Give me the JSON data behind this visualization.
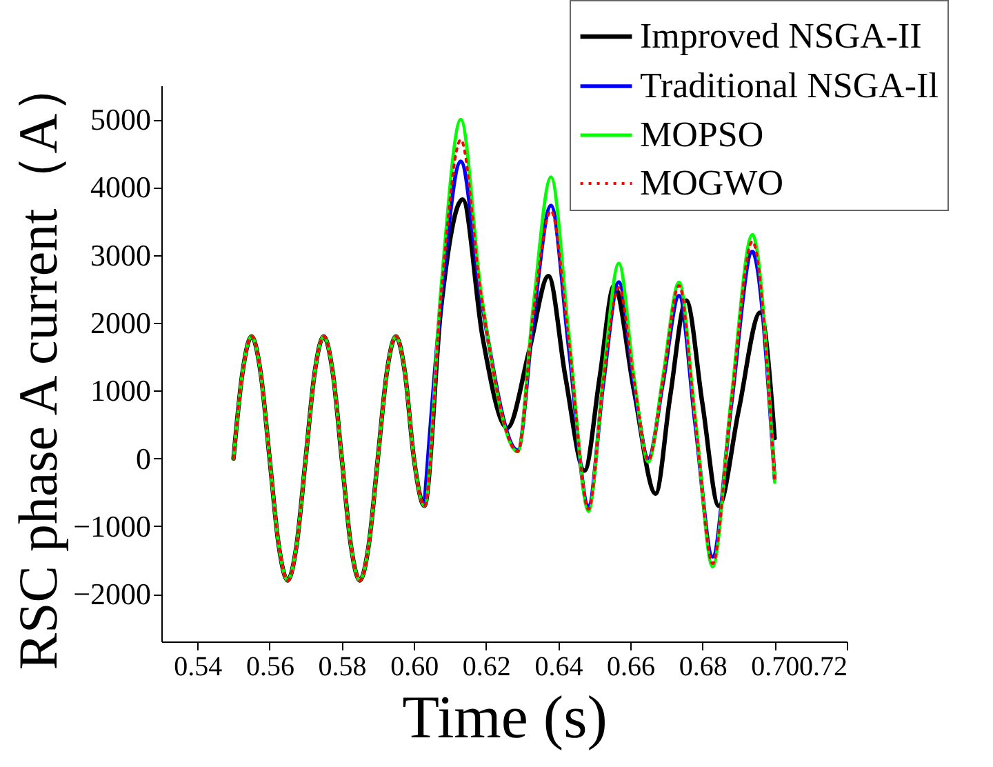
{
  "chart_data": {
    "type": "line",
    "xlabel": "Time (s)",
    "ylabel": "RSC phase A current（A）",
    "xlim": [
      0.53,
      0.72
    ],
    "xticks": [
      0.54,
      0.56,
      0.58,
      {
        "value": 0.6,
        "label": "0.60"
      },
      0.62,
      0.64,
      0.66,
      0.68,
      {
        "value": 0.7,
        "label": "0.70"
      },
      0.72
    ],
    "ylim": [
      -2700,
      5500
    ],
    "yticks": [
      -2000,
      -1000,
      0,
      1000,
      2000,
      3000,
      4000,
      5000
    ],
    "grid": false,
    "legend": "top right",
    "series": [
      {
        "name": "Improved NSGA-II",
        "color": "#000000",
        "line_style": "solid",
        "x": [
          0.55,
          0.5525,
          0.555,
          0.5575,
          0.56,
          0.5625,
          0.565,
          0.5675,
          0.57,
          0.5725,
          0.575,
          0.5775,
          0.58,
          0.5825,
          0.585,
          0.5875,
          0.59,
          0.5925,
          0.595,
          0.5975,
          0.6,
          0.6029,
          0.6075,
          0.6135,
          0.619,
          0.6259,
          0.632,
          0.6373,
          0.642,
          0.6473,
          0.6515,
          0.6555,
          0.661,
          0.667,
          0.671,
          0.6755,
          0.68,
          0.6845,
          0.69,
          0.696,
          0.7
        ],
        "values": [
          0,
          1270,
          1800,
          1270,
          0,
          -1270,
          -1800,
          -1270,
          0,
          1270,
          1800,
          1270,
          0,
          -1270,
          -1800,
          -1270,
          0,
          1270,
          1800,
          1270,
          0,
          -700,
          2200,
          3820,
          1800,
          450,
          1600,
          2690,
          1200,
          -180,
          1200,
          2550,
          1000,
          -520,
          900,
          2330,
          800,
          -700,
          700,
          2150,
          300
        ]
      },
      {
        "name": "Traditional NSGA-Il",
        "color": "#0000ff",
        "line_style": "solid",
        "x": [
          0.6029,
          0.6075,
          0.613,
          0.6185,
          0.6288,
          0.633,
          0.638,
          0.643,
          0.6484,
          0.6525,
          0.6568,
          0.661,
          0.665,
          0.669,
          0.6735,
          0.678,
          0.6828,
          0.688,
          0.6938,
          0.7
        ],
        "values": [
          -700,
          2300,
          4380,
          2400,
          120,
          2000,
          3730,
          1600,
          -700,
          1100,
          2600,
          1100,
          0,
          1100,
          2400,
          500,
          -1450,
          800,
          3050,
          -300
        ]
      },
      {
        "name": "MOPSO",
        "color": "#00ff00",
        "line_style": "solid",
        "x": [
          0.55,
          0.5525,
          0.555,
          0.5575,
          0.56,
          0.5625,
          0.565,
          0.5675,
          0.57,
          0.5725,
          0.575,
          0.5775,
          0.58,
          0.5825,
          0.585,
          0.5875,
          0.59,
          0.5925,
          0.595,
          0.5975,
          0.6,
          0.6029,
          0.6075,
          0.613,
          0.6185,
          0.6288,
          0.633,
          0.638,
          0.643,
          0.6484,
          0.6525,
          0.6568,
          0.661,
          0.665,
          0.669,
          0.6735,
          0.678,
          0.6828,
          0.688,
          0.6938,
          0.7
        ],
        "values": [
          0,
          1270,
          1800,
          1270,
          0,
          -1270,
          -1800,
          -1270,
          0,
          1270,
          1800,
          1270,
          0,
          -1270,
          -1800,
          -1270,
          0,
          1270,
          1800,
          1270,
          0,
          -700,
          2500,
          5000,
          2500,
          100,
          2200,
          4150,
          1800,
          -780,
          1200,
          2880,
          1200,
          -50,
          1200,
          2600,
          600,
          -1600,
          900,
          3300,
          -350
        ]
      },
      {
        "name": "MOGWO",
        "color": "#ff0000",
        "line_style": "dotted",
        "x": [
          0.55,
          0.5525,
          0.555,
          0.5575,
          0.56,
          0.5625,
          0.565,
          0.5675,
          0.57,
          0.5725,
          0.575,
          0.5775,
          0.58,
          0.5825,
          0.585,
          0.5875,
          0.59,
          0.5925,
          0.595,
          0.5975,
          0.6,
          0.6029,
          0.6075,
          0.613,
          0.6185,
          0.6288,
          0.633,
          0.638,
          0.643,
          0.6484,
          0.6525,
          0.6568,
          0.661,
          0.665,
          0.669,
          0.6735,
          0.678,
          0.6828,
          0.688,
          0.6938,
          0.7
        ],
        "values": [
          0,
          1270,
          1800,
          1270,
          0,
          -1270,
          -1800,
          -1270,
          0,
          1270,
          1800,
          1270,
          0,
          -1270,
          -1800,
          -1270,
          0,
          1270,
          1800,
          1270,
          0,
          -700,
          2400,
          4700,
          2450,
          100,
          2100,
          3650,
          1700,
          -750,
          1150,
          2520,
          1150,
          -30,
          1150,
          2550,
          550,
          -1550,
          850,
          3200,
          -350
        ]
      }
    ]
  }
}
